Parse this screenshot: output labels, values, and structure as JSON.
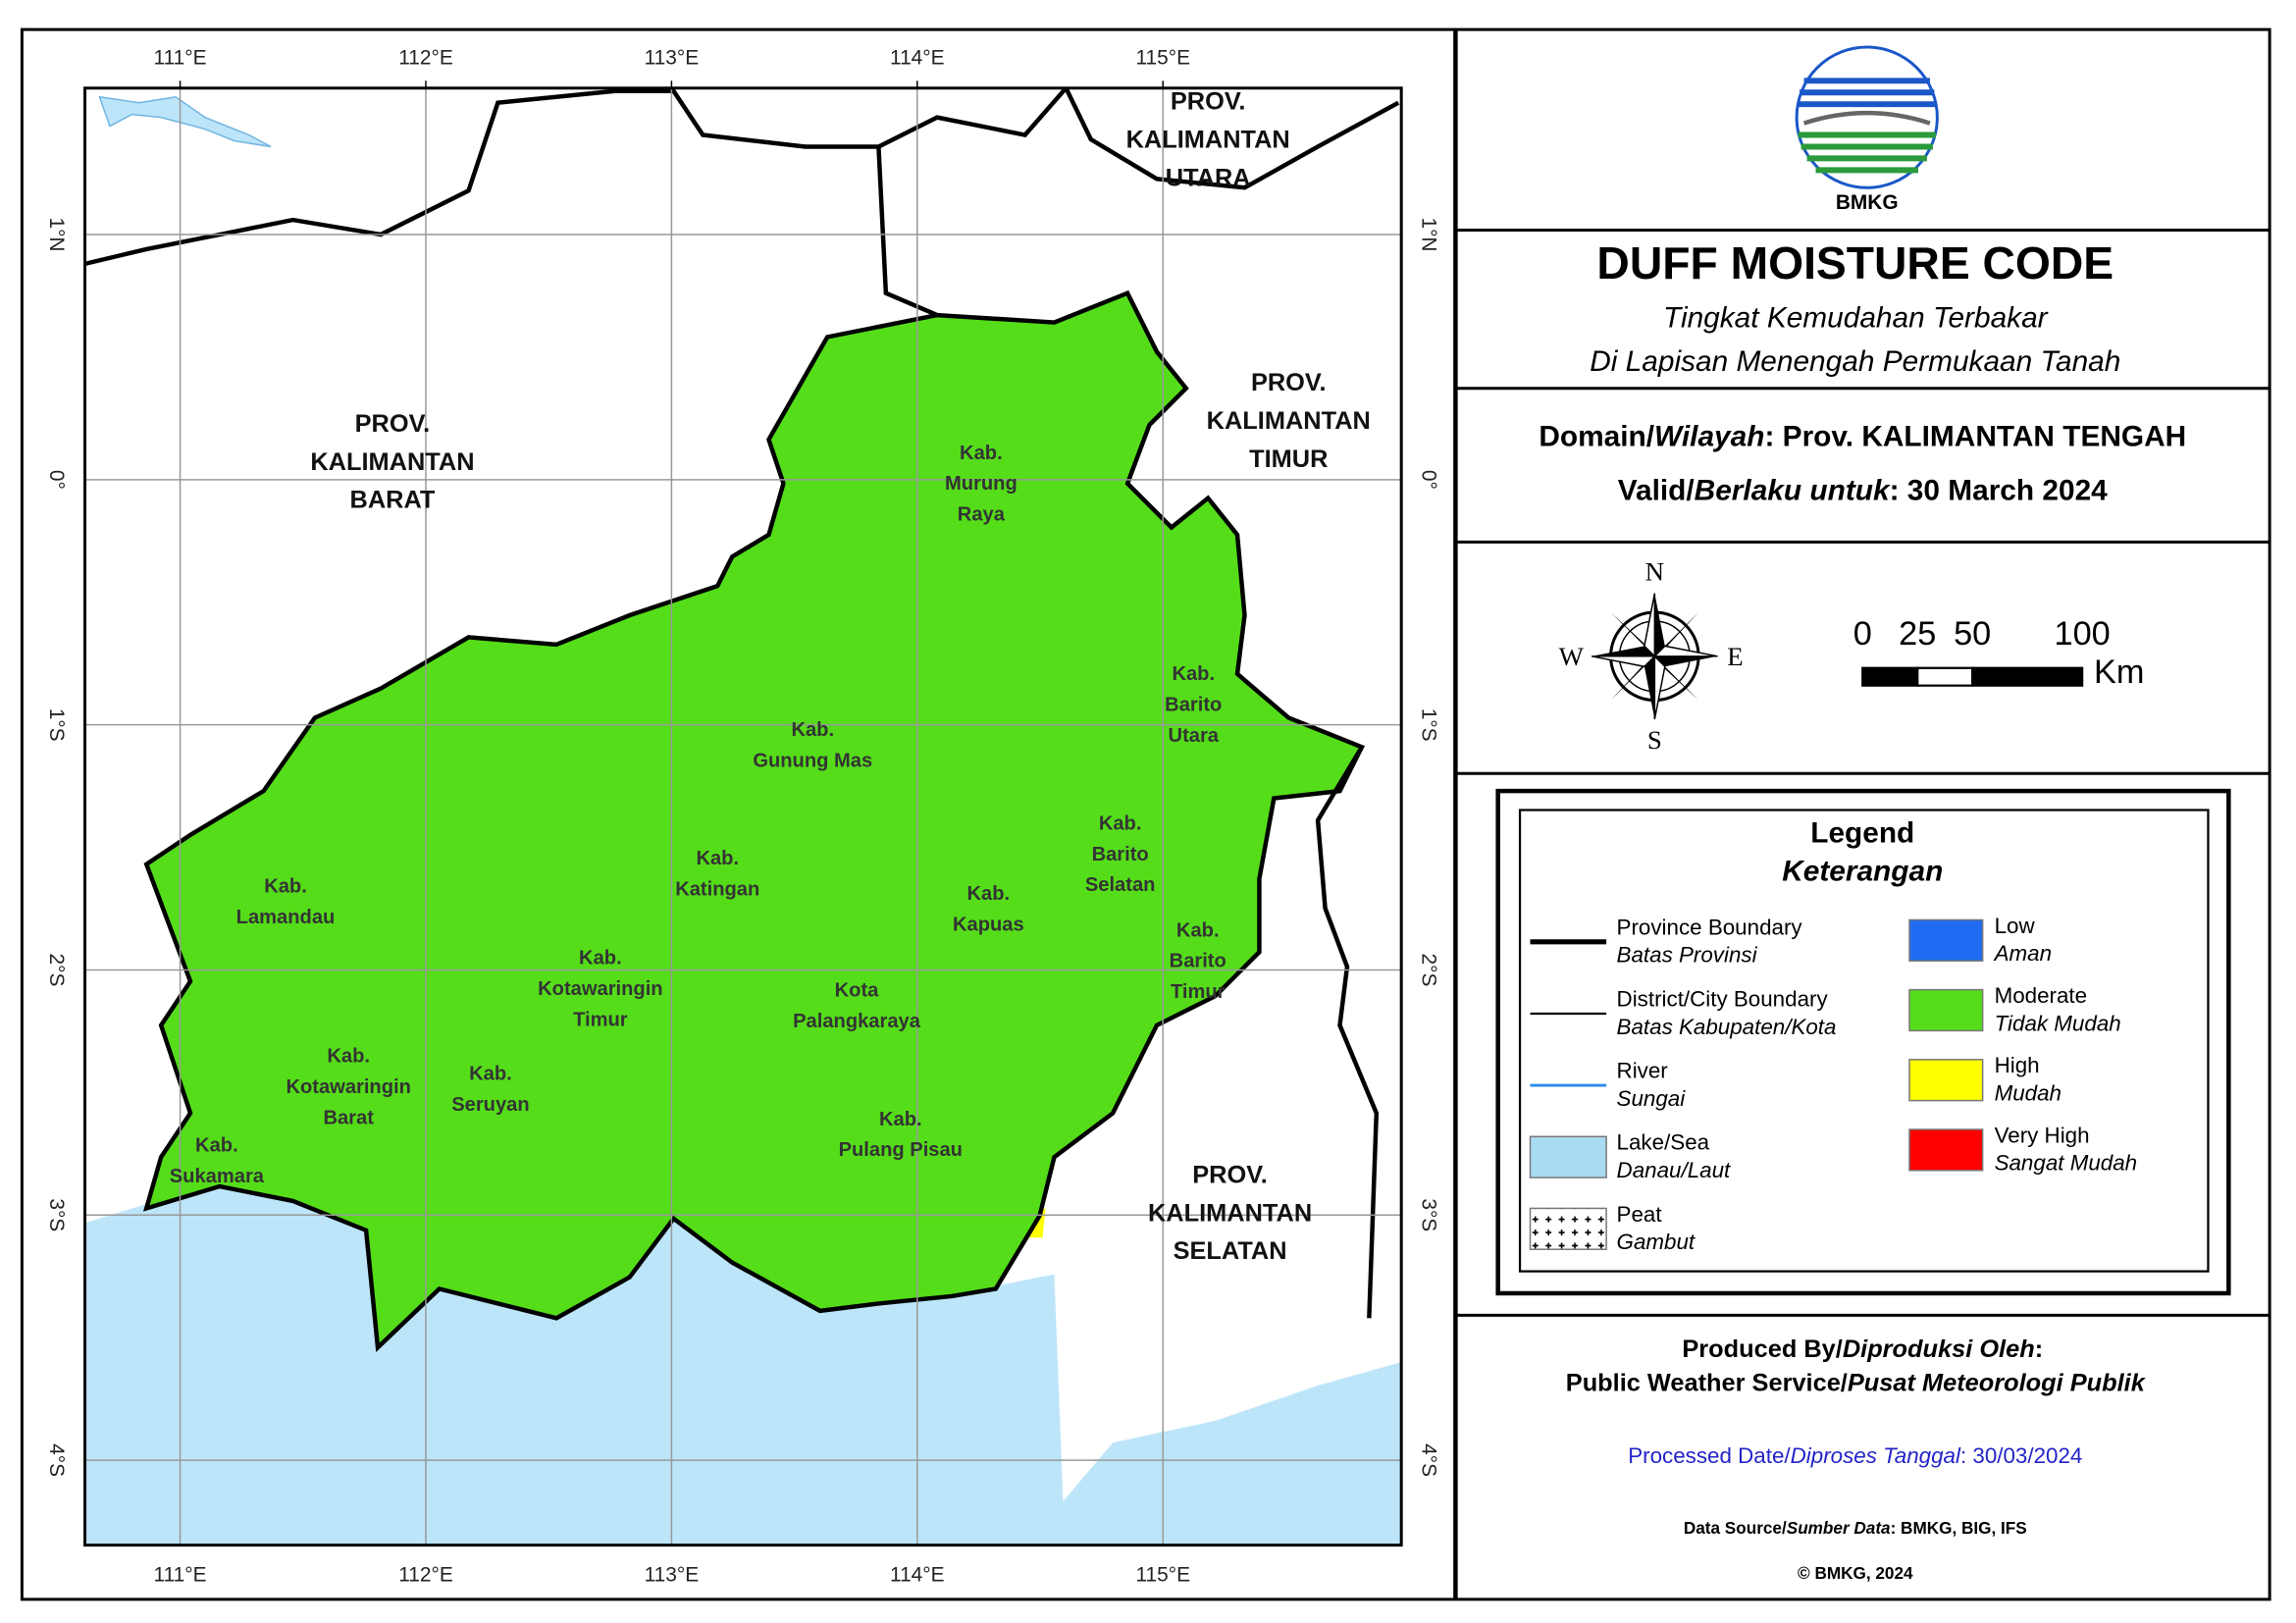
{
  "map": {
    "lon_labels": [
      "111°E",
      "112°E",
      "113°E",
      "114°E",
      "115°E"
    ],
    "lat_labels": [
      "1°N",
      "0°",
      "1°S",
      "2°S",
      "3°S",
      "4°S"
    ],
    "provinces": [
      [
        "PROV.",
        "KALIMANTAN",
        "BARAT"
      ],
      [
        "PROV.",
        "KALIMANTAN",
        "UTARA"
      ],
      [
        "PROV.",
        "KALIMANTAN",
        "TIMUR"
      ],
      [
        "PROV.",
        "KALIMANTAN",
        "SELATAN"
      ]
    ],
    "districts": [
      [
        "Kab.",
        "Murung",
        "Raya"
      ],
      [
        "Kab.",
        "Barito",
        "Utara"
      ],
      [
        "Kab.",
        "Gunung Mas"
      ],
      [
        "Kab.",
        "Barito",
        "Selatan"
      ],
      [
        "Kab.",
        "Katingan"
      ],
      [
        "Kab.",
        "Kapuas"
      ],
      [
        "Kab.",
        "Barito",
        "Timur"
      ],
      [
        "Kab.",
        "Lamandau"
      ],
      [
        "Kab.",
        "Kotawaringin",
        "Timur"
      ],
      [
        "Kota",
        "Palangkaraya"
      ],
      [
        "Kab.",
        "Kotawaringin",
        "Barat"
      ],
      [
        "Kab.",
        "Seruyan"
      ],
      [
        "Kab.",
        "Pulang Pisau"
      ],
      [
        "Kab.",
        "Sukamara"
      ]
    ]
  },
  "logo": "BMKG",
  "title": "DUFF MOISTURE CODE",
  "subtitle": [
    "Tingkat Kemudahan Terbakar",
    "Di Lapisan Menengah Permukaan Tanah"
  ],
  "domain": [
    "Domain/",
    "Wilayah",
    ": Prov. KALIMANTAN TENGAH"
  ],
  "valid": [
    "Valid/",
    "Berlaku untuk",
    ": 30 March 2024"
  ],
  "compass": {
    "n": "N",
    "e": "E",
    "s": "S",
    "w": "W"
  },
  "scale": {
    "ticks": [
      0,
      25,
      50,
      100
    ],
    "unit": "Km"
  },
  "legend": {
    "title": "Legend",
    "subtitle": "Keterangan",
    "lines": [
      {
        "name": "Province Boundary",
        "alt": "Batas Provinsi"
      },
      {
        "name": "District/City Boundary",
        "alt": "Batas Kabupaten/Kota"
      },
      {
        "name": "River",
        "alt": "Sungai"
      },
      {
        "name": "Lake/Sea",
        "alt": "Danau/Laut"
      },
      {
        "name": "Peat",
        "alt": "Gambut"
      }
    ],
    "classes": [
      {
        "name": "Low",
        "alt": "Aman",
        "color": "#1f6cf2"
      },
      {
        "name": "Moderate",
        "alt": "Tidak Mudah",
        "color": "#55dd1a"
      },
      {
        "name": "High",
        "alt": "Mudah",
        "color": "#ffff00"
      },
      {
        "name": "Very High",
        "alt": "Sangat Mudah",
        "color": "#ff0000"
      }
    ]
  },
  "produced_by": [
    "Produced By/",
    "Diproduksi Oleh",
    ":"
  ],
  "producer": [
    "Public Weather Service/",
    "Pusat Meteorologi Publik"
  ],
  "processed": [
    "Processed Date/",
    "Diproses Tanggal",
    ": 30/03/2024"
  ],
  "data_source": [
    "Data Source/",
    "Sumber Data",
    ": BMKG, BIG, IFS"
  ],
  "copyright": "© BMKG, 2024"
}
